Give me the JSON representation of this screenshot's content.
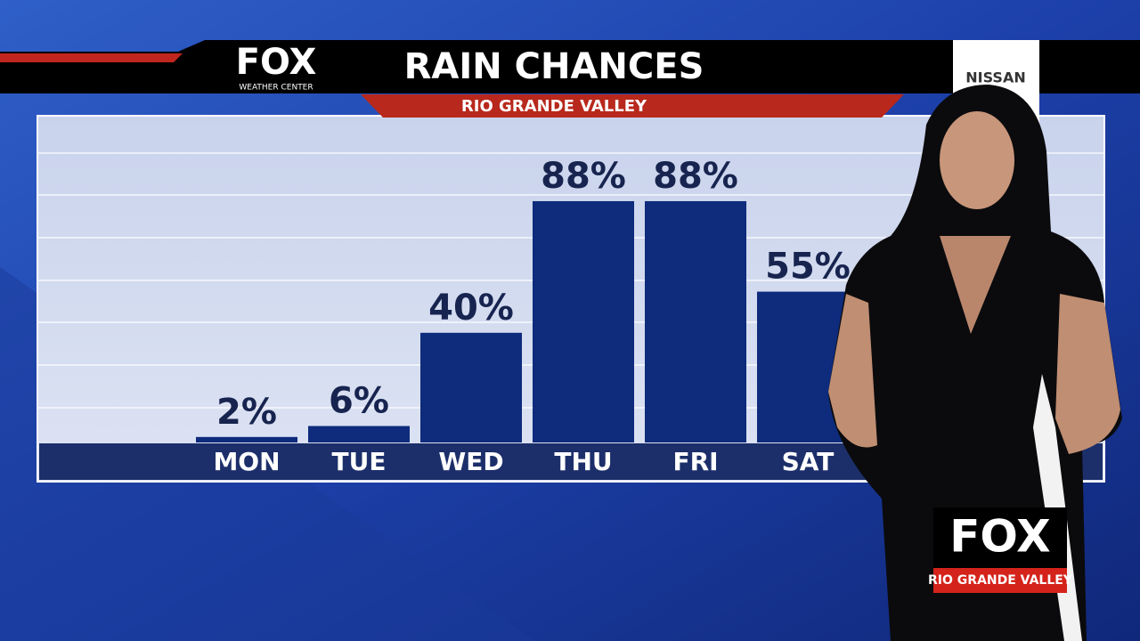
{
  "header": {
    "logo": "FOX",
    "logo_sub": "WEATHER CENTER",
    "sponsor": "NISSAN"
  },
  "chart_data": {
    "type": "bar",
    "title": "RAIN CHANCES",
    "subtitle": "RIO GRANDE VALLEY",
    "categories": [
      "MON",
      "TUE",
      "WED",
      "THU",
      "FRI",
      "SAT"
    ],
    "values": [
      2,
      6,
      40,
      88,
      88,
      55
    ],
    "value_labels": [
      "2%",
      "6%",
      "40%",
      "88%",
      "88%",
      "55%"
    ],
    "color": "#0e2b7c",
    "ylim": [
      0,
      100
    ]
  },
  "station_logo": {
    "name": "FOX",
    "region": "RIO GRANDE VALLEY"
  }
}
